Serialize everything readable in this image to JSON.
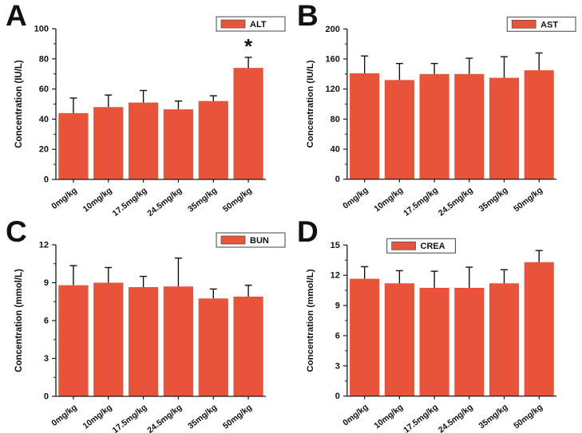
{
  "figure": {
    "background": "#ffffff",
    "axis_color": "#1a1a1a",
    "error_bar_color": "#111111",
    "bar_color": "#E8543A",
    "text_color": "#111111"
  },
  "chart_data": [
    {
      "type": "bar",
      "panel_label": "A",
      "legend": "ALT",
      "legend_pos": "top-right",
      "ylabel": "Concentration (IU/L)",
      "xlabel": "",
      "categories": [
        "0mg/kg",
        "10mg/kg",
        "17.5mg/kg",
        "24.5mg/kg",
        "35mg/kg",
        "50mg/kg"
      ],
      "values": [
        44,
        48,
        51,
        46.5,
        52,
        74
      ],
      "errors": [
        10,
        8,
        8,
        5.5,
        3.5,
        7
      ],
      "ylim": [
        0,
        100
      ],
      "yticks": [
        0,
        20,
        40,
        60,
        80,
        100
      ],
      "grid": false,
      "bar_color": "#E8543A",
      "annotations": [
        {
          "bar_index": 5,
          "text": "*"
        }
      ]
    },
    {
      "type": "bar",
      "panel_label": "B",
      "legend": "AST",
      "legend_pos": "top-right",
      "ylabel": "Concentration (IU/L)",
      "xlabel": "",
      "categories": [
        "0mg/kg",
        "10mg/kg",
        "17.5mg/kg",
        "24.5mg/kg",
        "35mg/kg",
        "50mg/kg"
      ],
      "values": [
        141,
        132,
        140,
        140,
        135,
        145
      ],
      "errors": [
        23,
        22,
        14,
        21,
        28,
        23
      ],
      "ylim": [
        0,
        200
      ],
      "yticks": [
        0,
        40,
        80,
        120,
        160,
        200
      ],
      "grid": false,
      "bar_color": "#E8543A",
      "annotations": []
    },
    {
      "type": "bar",
      "panel_label": "C",
      "legend": "BUN",
      "legend_pos": "top-right",
      "ylabel": "Concentration (mmol/L)",
      "xlabel": "",
      "categories": [
        "0mg/kg",
        "10mg/kg",
        "17.5mg/kg",
        "24.5mg/kg",
        "35mg/kg",
        "50mg/kg"
      ],
      "values": [
        8.8,
        9.0,
        8.65,
        8.7,
        7.75,
        7.9
      ],
      "errors": [
        1.55,
        1.2,
        0.85,
        2.25,
        0.75,
        0.9
      ],
      "ylim": [
        0,
        12
      ],
      "yticks": [
        0,
        3,
        6,
        9,
        12
      ],
      "grid": false,
      "bar_color": "#E8543A",
      "annotations": []
    },
    {
      "type": "bar",
      "panel_label": "D",
      "legend": "CREA",
      "legend_pos": "top-left",
      "ylabel": "Concentration (mmol/L)",
      "xlabel": "",
      "categories": [
        "0mg/kg",
        "10mg/kg",
        "17.5mg/kg",
        "24.5mg/kg",
        "35mg/kg",
        "50mg/kg"
      ],
      "values": [
        11.65,
        11.2,
        10.75,
        10.75,
        11.2,
        13.3
      ],
      "errors": [
        1.2,
        1.25,
        1.65,
        2.05,
        1.35,
        1.15
      ],
      "ylim": [
        0,
        15
      ],
      "yticks": [
        0,
        3,
        6,
        9,
        12,
        15
      ],
      "grid": false,
      "bar_color": "#E8543A",
      "annotations": []
    }
  ]
}
